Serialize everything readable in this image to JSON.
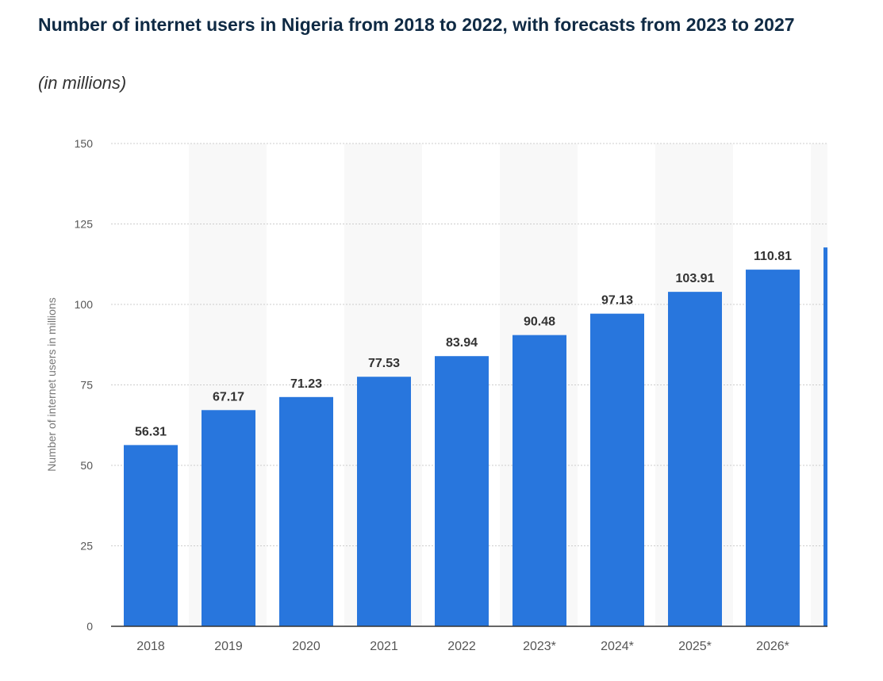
{
  "chart_data": {
    "type": "bar",
    "title": "Number of internet users in Nigeria from 2018 to 2022, with forecasts from 2023 to 2027",
    "subtitle": "(in millions)",
    "xlabel": "",
    "ylabel": "Number of internet users in millions",
    "ylim": [
      0,
      150
    ],
    "yticks": [
      "0",
      "25",
      "50",
      "75",
      "100",
      "125",
      "150"
    ],
    "grid": true,
    "categories": [
      "2018",
      "2019",
      "2020",
      "2021",
      "2022",
      "2023*",
      "2024*",
      "2025*",
      "2026*",
      ""
    ],
    "values": [
      56.31,
      67.17,
      71.23,
      77.53,
      83.94,
      90.48,
      97.13,
      103.91,
      110.81,
      117.7
    ],
    "data_labels": [
      "56.31",
      "67.17",
      "71.23",
      "77.53",
      "83.94",
      "90.48",
      "97.13",
      "103.91",
      "110.81",
      ""
    ],
    "bar_color": "#2876dd"
  }
}
